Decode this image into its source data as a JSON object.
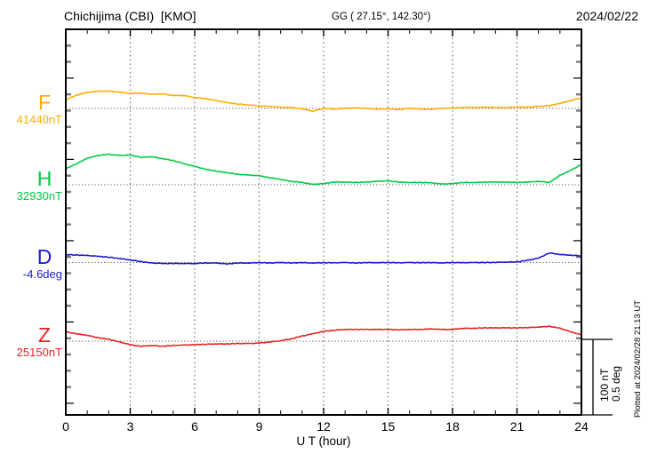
{
  "header": {
    "station": "Chichijima (CBI)  [KMO]",
    "coords": "GG ( 27.15°, 142.30°)",
    "date": "2024/02/22"
  },
  "axis": {
    "x_label": "U T (hour)",
    "x_ticks": [
      0,
      3,
      6,
      9,
      12,
      15,
      18,
      21,
      24
    ],
    "x_range": [
      0,
      24
    ]
  },
  "scale_bar": {
    "label_nt": "100 nT",
    "label_deg": "0.5 deg"
  },
  "footer_note": "Plotted at 2024/02/28 21:13 UT",
  "chart_data": {
    "type": "line",
    "title": "Chichijima (CBI) [KMO] magnetogram 2024/02/22",
    "xlabel": "U T (hour)",
    "x_range_hours": [
      0,
      24
    ],
    "grid": "dotted verticals every 3 h; dotted horizontal baseline per component",
    "scale": {
      "nT_per_bar": 100,
      "deg_per_bar": 0.5
    },
    "x_hours": [
      0,
      0.5,
      1,
      1.5,
      2,
      2.5,
      3,
      3.5,
      4,
      4.5,
      5,
      5.5,
      6,
      6.5,
      7,
      7.5,
      8,
      8.5,
      9,
      9.5,
      10,
      10.5,
      11,
      11.5,
      12,
      12.5,
      13,
      13.5,
      14,
      14.5,
      15,
      15.5,
      16,
      16.5,
      17,
      17.5,
      18,
      18.5,
      19,
      19.5,
      20,
      20.5,
      21,
      21.5,
      22,
      22.5,
      23,
      23.5,
      24
    ],
    "series": [
      {
        "name": "F",
        "unit": "nT",
        "baseline": 41440,
        "baseline_label": "41440nT",
        "color": "#FFAD00",
        "values": [
          41451,
          41457,
          41460.5,
          41462,
          41462,
          41461,
          41459,
          41459.5,
          41458,
          41458.5,
          41456.5,
          41456.5,
          41454,
          41452.5,
          41450,
          41447.5,
          41445.5,
          41444.5,
          41443,
          41442.5,
          41441.5,
          41441,
          41439.5,
          41436.5,
          41440,
          41439,
          41440,
          41440.5,
          41440,
          41439,
          41439.5,
          41438.5,
          41440,
          41439,
          41439,
          41440,
          41440.5,
          41441,
          41441,
          41441.5,
          41441,
          41441,
          41441.5,
          41441.5,
          41442.5,
          41443.5,
          41446.5,
          41450,
          41453.5
        ]
      },
      {
        "name": "H",
        "unit": "nT",
        "baseline": 32930,
        "baseline_label": "32930nT",
        "color": "#00CC44",
        "values": [
          32950.5,
          32957,
          32964,
          32967.5,
          32969,
          32967.5,
          32968,
          32965,
          32966,
          32963.5,
          32961,
          32957,
          32953.5,
          32950,
          32947.5,
          32945.5,
          32943.5,
          32942.5,
          32941.5,
          32939,
          32937,
          32934.5,
          32933,
          32930.5,
          32931.5,
          32933.5,
          32933.5,
          32933,
          32933.5,
          32934.5,
          32935,
          32933.5,
          32933,
          32933,
          32932.5,
          32931,
          32931.5,
          32933,
          32933,
          32933.5,
          32933.5,
          32933.5,
          32933,
          32933.5,
          32934.5,
          32933,
          32942,
          32948.5,
          32956
        ]
      },
      {
        "name": "D",
        "unit": "deg",
        "baseline": -4.6,
        "baseline_label": "-4.6deg",
        "color": "#1A1ACC",
        "values": [
          -4.549,
          -4.552,
          -4.555,
          -4.56,
          -4.566,
          -4.574,
          -4.583,
          -4.594,
          -4.603,
          -4.606,
          -4.606,
          -4.606,
          -4.606,
          -4.603,
          -4.603,
          -4.609,
          -4.603,
          -4.603,
          -4.6,
          -4.603,
          -4.6,
          -4.603,
          -4.6,
          -4.603,
          -4.601,
          -4.602,
          -4.6,
          -4.603,
          -4.6,
          -4.601,
          -4.6,
          -4.602,
          -4.6,
          -4.601,
          -4.6,
          -4.602,
          -4.6,
          -4.601,
          -4.6,
          -4.6,
          -4.599,
          -4.597,
          -4.596,
          -4.586,
          -4.572,
          -4.539,
          -4.548,
          -4.553,
          -4.557
        ]
      },
      {
        "name": "Z",
        "unit": "nT",
        "baseline": 25150,
        "baseline_label": "25150nT",
        "color": "#E62222",
        "values": [
          25162,
          25159.5,
          25157.5,
          25154.5,
          25152.5,
          25149,
          25145.5,
          25143.5,
          25144.5,
          25143.5,
          25144.5,
          25145,
          25145.5,
          25146,
          25146.5,
          25146.5,
          25147,
          25147,
          25147.5,
          25149,
          25150.5,
          25153,
          25156.5,
          25159.5,
          25162.5,
          25164,
          25165,
          25165,
          25165,
          25165,
          25165,
          25164.5,
          25165,
          25165,
          25165.5,
          25165,
          25165,
          25166.5,
          25166.5,
          25167,
          25167,
          25167,
          25167,
          25167.5,
          25168,
          25169,
          25166.5,
          25162,
          25158
        ]
      }
    ]
  }
}
